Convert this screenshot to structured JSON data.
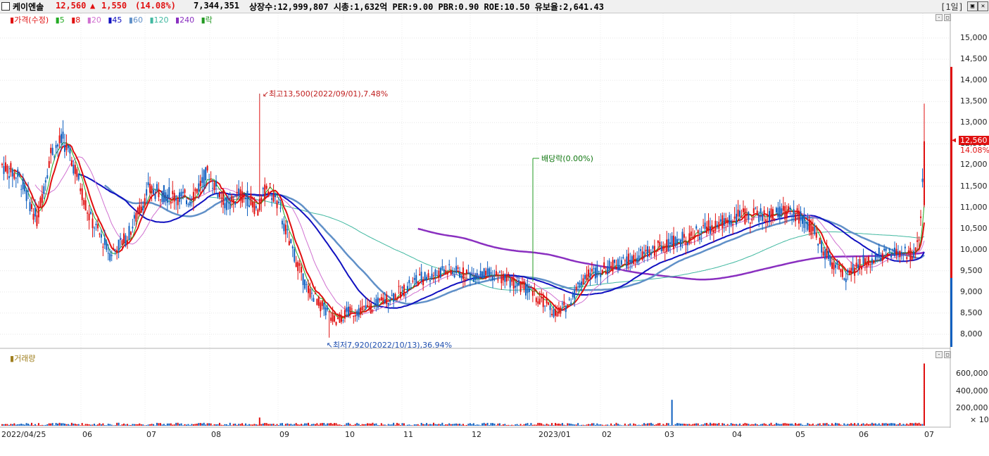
{
  "header": {
    "stock_name": "케이엔솔",
    "price": "12,560",
    "change_arrow": "▲",
    "change": "1,550",
    "change_pct": "(14.08%)",
    "volume": "7,344,351",
    "info": "상장수:12,999,807 시총:1,632억 PER:9.00 PBR:0.90 ROE:10.50 유보율:2,641.43",
    "period": "[1일]"
  },
  "legend": {
    "price_label": "가격(수정)",
    "ma": [
      {
        "label": "5",
        "color": "#22aa22"
      },
      {
        "label": "8",
        "color": "#e01010"
      },
      {
        "label": "20",
        "color": "#d070d0"
      },
      {
        "label": "45",
        "color": "#1010c0"
      },
      {
        "label": "60",
        "color": "#6090c8"
      },
      {
        "label": "120",
        "color": "#40b8a0"
      },
      {
        "label": "240",
        "color": "#8a30c0"
      }
    ],
    "event_label": "락",
    "volume_label": "거래량"
  },
  "annotations": {
    "high": "최고13,500(2022/09/01),7.48%",
    "low": "최저7,920(2022/10/13),36.94%",
    "dividend": "배당락(0.00%)"
  },
  "price_axis": {
    "ticks": [
      "15,000",
      "14,500",
      "14,000",
      "13,500",
      "13,000",
      "12,500",
      "12,000",
      "11,500",
      "11,000",
      "10,500",
      "10,000",
      "9,500",
      "9,000",
      "8,500",
      "8,000"
    ],
    "current_price": "12,560",
    "current_pct": "14.08%"
  },
  "volume_axis": {
    "ticks": [
      "600,000",
      "400,000",
      "200,000"
    ],
    "unit": "× 10"
  },
  "date_axis": {
    "labels": [
      "2022/04/25",
      "06",
      "07",
      "08",
      "09",
      "10",
      "11",
      "12",
      "2023/01",
      "02",
      "03",
      "04",
      "05",
      "06",
      "07"
    ]
  },
  "colors": {
    "up": "#e01010",
    "down": "#1060c0"
  },
  "chart_data": {
    "type": "candlestick",
    "ylim": [
      7800,
      15300
    ],
    "high_value": 13500,
    "low_value": 7920,
    "last_value": 12560
  }
}
